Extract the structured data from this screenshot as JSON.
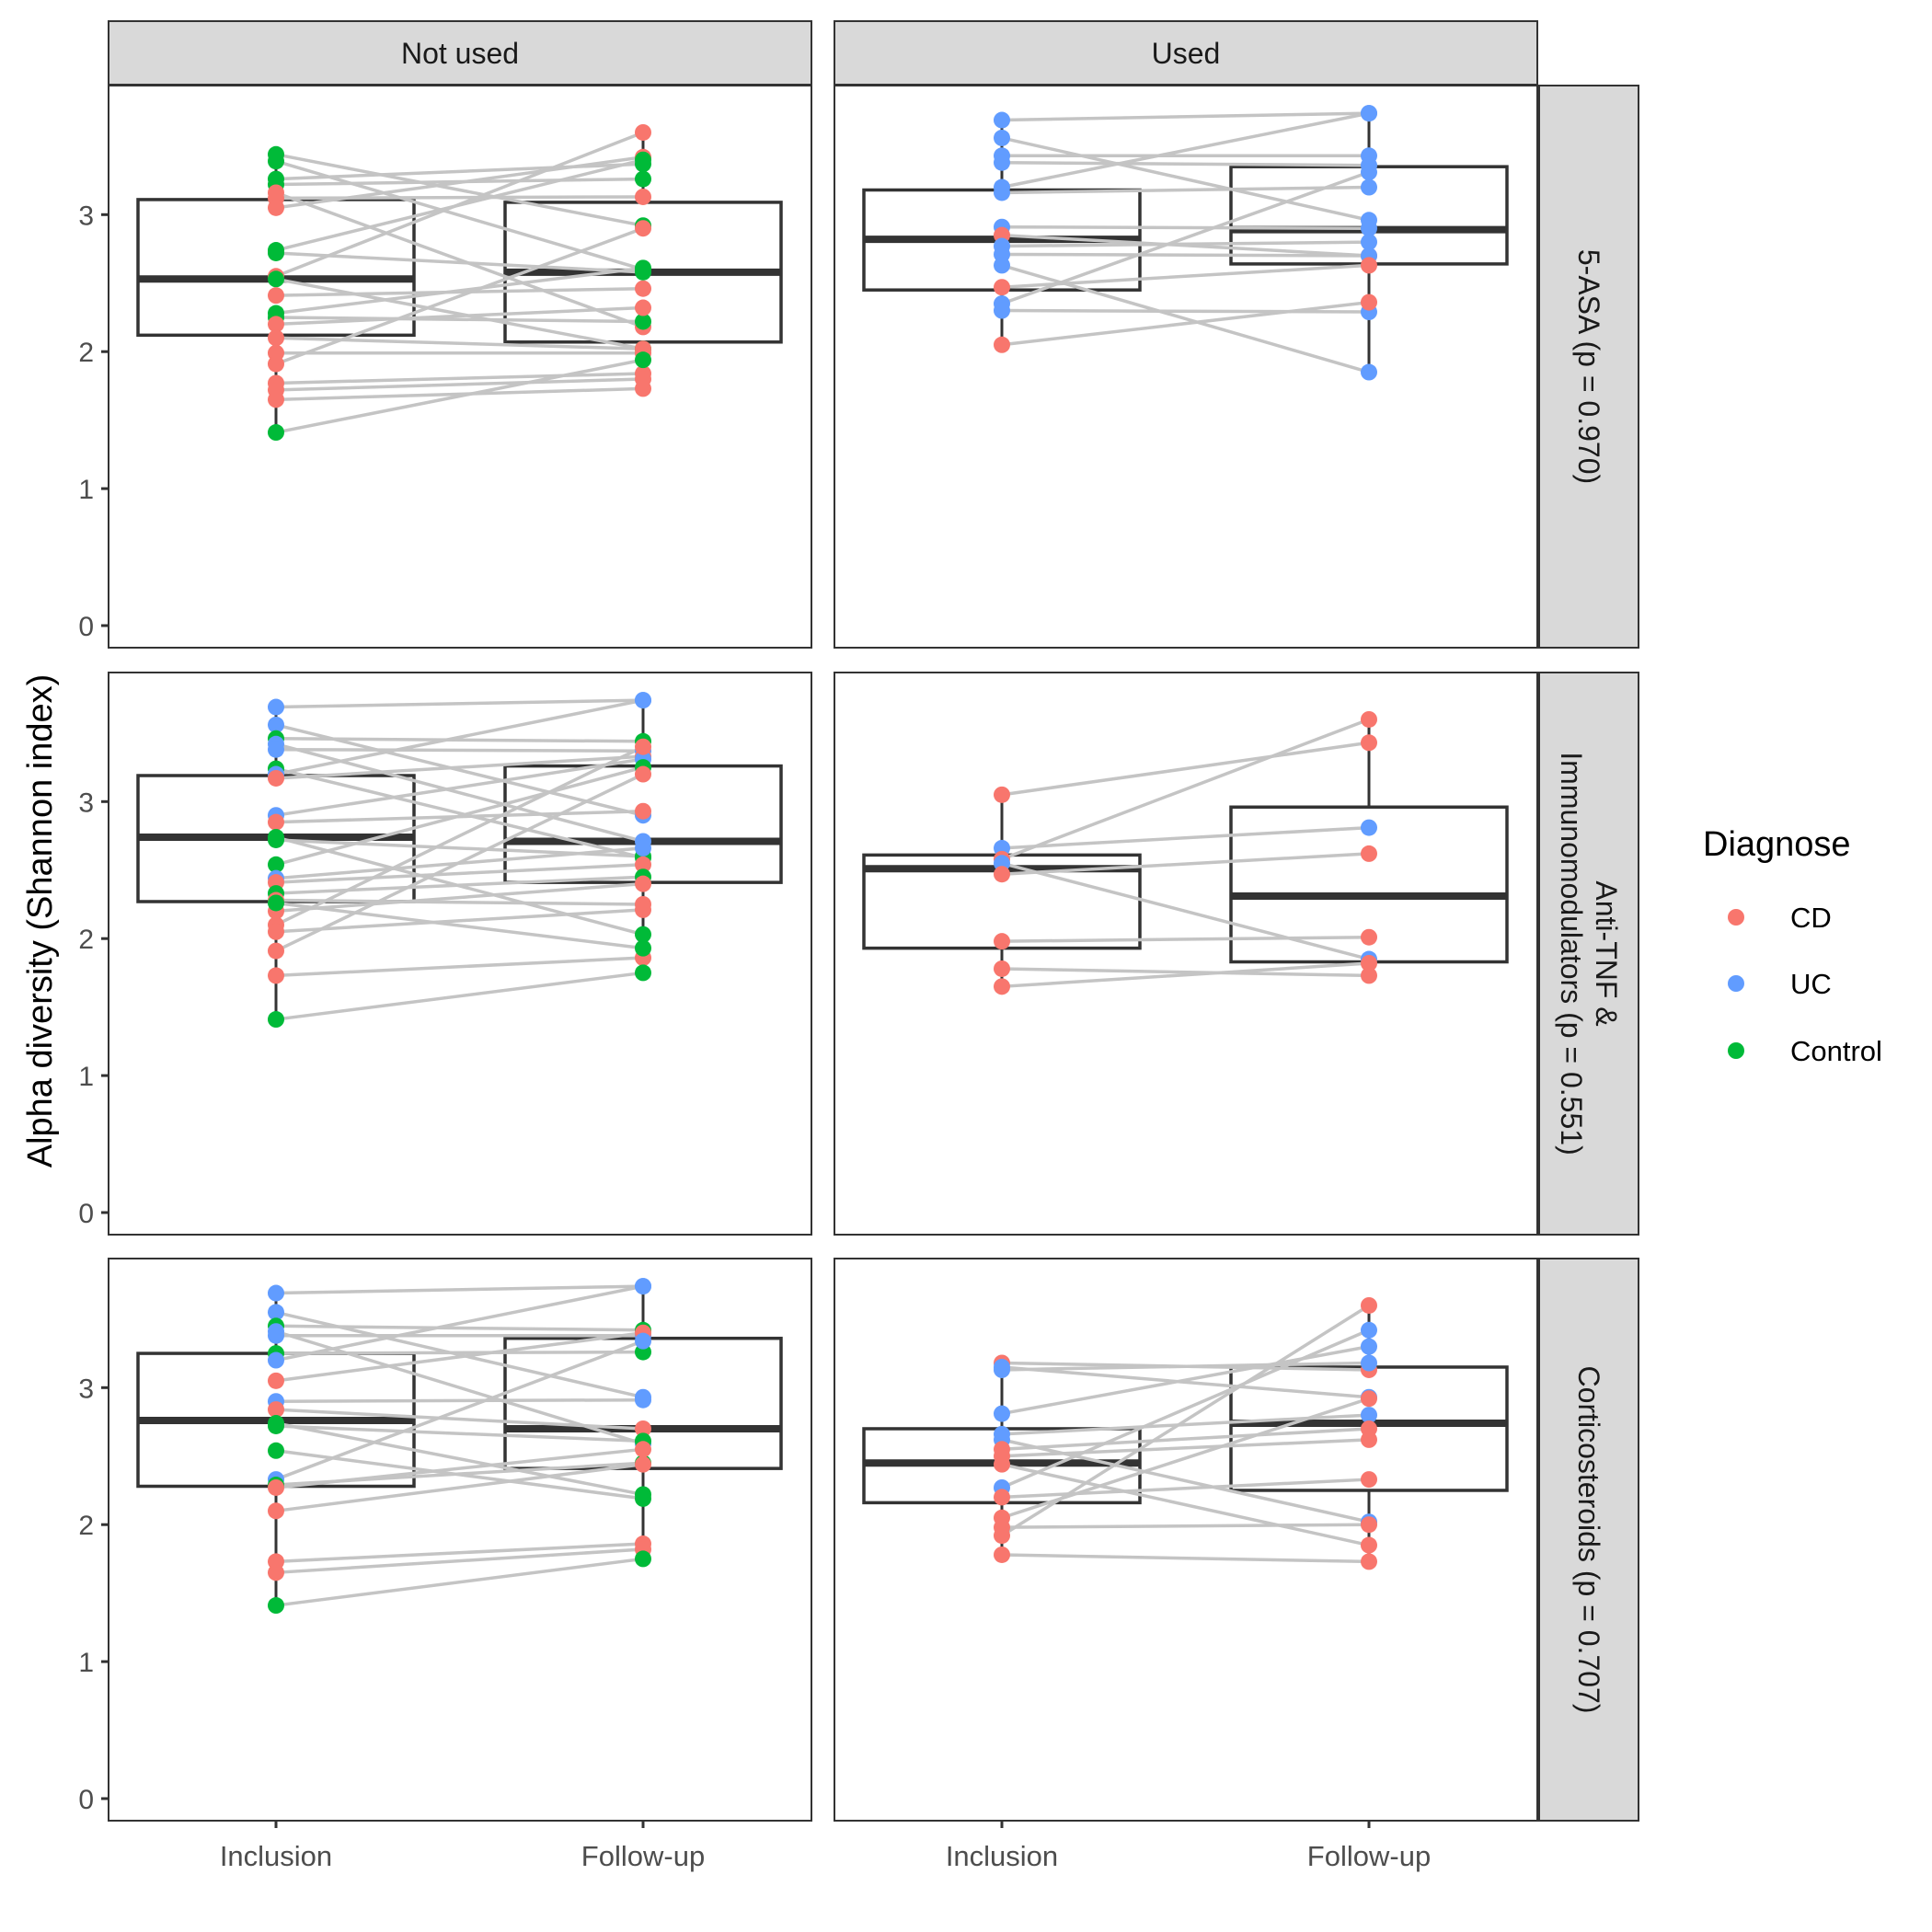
{
  "chart_data": {
    "type": "box+paired-scatter",
    "ylabel": "Alpha diversity (Shannon index)",
    "xlabel": "",
    "ylim": [
      0,
      3.95
    ],
    "y_ticks": [
      "0",
      "1",
      "2",
      "3"
    ],
    "x_categories": [
      "Inclusion",
      "Follow-up"
    ],
    "col_facets": [
      "Not used",
      "Used"
    ],
    "row_facets": [
      "5-ASA (p  = 0.970)",
      "Anti-TNF &\nImmunomodulators (p  = 0.551)",
      "Corticosteroids (p  = 0.707)"
    ],
    "row_facet_lines": [
      [
        "5-ASA (p  = 0.970)"
      ],
      [
        "Anti-TNF &",
        "Immunomodulators (p  = 0.551)"
      ],
      [
        "Corticosteroids (p  = 0.707)"
      ]
    ],
    "legend": {
      "title": "Diagnose",
      "position": "right",
      "entries": [
        {
          "label": "CD",
          "color": "#F8766D"
        },
        {
          "label": "UC",
          "color": "#619CFF"
        },
        {
          "label": "Control",
          "color": "#00BA38"
        }
      ]
    },
    "grid": false,
    "panels": [
      {
        "row": 0,
        "col": 0,
        "boxes": [
          {
            "x": "Inclusion",
            "q1": 2.12,
            "median": 2.53,
            "q3": 3.11,
            "whisker_low": 1.41,
            "whisker_high": 3.44
          },
          {
            "x": "Follow-up",
            "q1": 2.07,
            "median": 2.58,
            "q3": 3.09,
            "whisker_low": 1.73,
            "whisker_high": 3.6
          }
        ],
        "pairs": [
          {
            "g": "Control",
            "a": 3.44,
            "b": 2.92
          },
          {
            "g": "Control",
            "a": 3.39,
            "b": 2.6
          },
          {
            "g": "Control",
            "a": 3.26,
            "b": 3.37
          },
          {
            "g": "Control",
            "a": 3.22,
            "b": 3.26
          },
          {
            "g": "CD",
            "a": 3.16,
            "b": 2.18
          },
          {
            "g": "CD",
            "a": 3.12,
            "b": 3.13
          },
          {
            "g": "CD",
            "a": 3.05,
            "b": 3.42
          },
          {
            "g": "Control",
            "a": 2.74,
            "b": 3.4
          },
          {
            "g": "Control",
            "a": 2.72,
            "b": 2.58
          },
          {
            "g": "CD",
            "a": 2.55,
            "b": 3.6
          },
          {
            "g": "Control",
            "a": 2.53,
            "b": 2.02
          },
          {
            "g": "CD",
            "a": 2.41,
            "b": 2.46
          },
          {
            "g": "Control",
            "a": 2.28,
            "b": 2.61
          },
          {
            "g": "Control",
            "a": 2.25,
            "b": 2.22
          },
          {
            "g": "CD",
            "a": 2.2,
            "b": 2.32
          },
          {
            "g": "CD",
            "a": 2.1,
            "b": 2.02
          },
          {
            "g": "CD",
            "a": 1.99,
            "b": 1.99
          },
          {
            "g": "CD",
            "a": 1.91,
            "b": 2.9
          },
          {
            "g": "CD",
            "a": 1.77,
            "b": 1.84
          },
          {
            "g": "CD",
            "a": 1.72,
            "b": 1.8
          },
          {
            "g": "CD",
            "a": 1.65,
            "b": 1.73
          },
          {
            "g": "Control",
            "a": 1.41,
            "b": 1.94
          }
        ]
      },
      {
        "row": 0,
        "col": 1,
        "boxes": [
          {
            "x": "Inclusion",
            "q1": 2.45,
            "median": 2.82,
            "q3": 3.18,
            "whisker_low": 2.05,
            "whisker_high": 3.69
          },
          {
            "x": "Follow-up",
            "q1": 2.64,
            "median": 2.89,
            "q3": 3.35,
            "whisker_low": 1.85,
            "whisker_high": 3.74
          }
        ],
        "pairs": [
          {
            "g": "UC",
            "a": 3.69,
            "b": 3.74
          },
          {
            "g": "UC",
            "a": 3.56,
            "b": 2.96
          },
          {
            "g": "UC",
            "a": 3.43,
            "b": 3.43
          },
          {
            "g": "UC",
            "a": 3.38,
            "b": 3.36
          },
          {
            "g": "UC",
            "a": 3.2,
            "b": 3.74
          },
          {
            "g": "UC",
            "a": 3.16,
            "b": 3.2
          },
          {
            "g": "UC",
            "a": 2.91,
            "b": 2.9
          },
          {
            "g": "CD",
            "a": 2.85,
            "b": 2.7
          },
          {
            "g": "UC",
            "a": 2.77,
            "b": 2.8
          },
          {
            "g": "UC",
            "a": 2.71,
            "b": 2.7
          },
          {
            "g": "UC",
            "a": 2.63,
            "b": 1.85
          },
          {
            "g": "CD",
            "a": 2.47,
            "b": 2.63
          },
          {
            "g": "UC",
            "a": 2.35,
            "b": 3.31
          },
          {
            "g": "UC",
            "a": 2.3,
            "b": 2.29
          },
          {
            "g": "CD",
            "a": 2.05,
            "b": 2.36
          }
        ]
      },
      {
        "row": 1,
        "col": 0,
        "boxes": [
          {
            "x": "Inclusion",
            "q1": 2.27,
            "median": 2.74,
            "q3": 3.19,
            "whisker_low": 1.41,
            "whisker_high": 3.69
          },
          {
            "x": "Follow-up",
            "q1": 2.41,
            "median": 2.71,
            "q3": 3.26,
            "whisker_low": 1.75,
            "whisker_high": 3.74
          }
        ],
        "pairs": [
          {
            "g": "UC",
            "a": 3.69,
            "b": 3.74
          },
          {
            "g": "UC",
            "a": 3.56,
            "b": 2.9
          },
          {
            "g": "Control",
            "a": 3.46,
            "b": 3.44
          },
          {
            "g": "UC",
            "a": 3.42,
            "b": 2.71
          },
          {
            "g": "UC",
            "a": 3.38,
            "b": 3.37
          },
          {
            "g": "Control",
            "a": 3.24,
            "b": 2.59
          },
          {
            "g": "UC",
            "a": 3.2,
            "b": 3.74
          },
          {
            "g": "CD",
            "a": 3.17,
            "b": 3.33
          },
          {
            "g": "UC",
            "a": 2.9,
            "b": 3.31
          },
          {
            "g": "CD",
            "a": 2.85,
            "b": 2.93
          },
          {
            "g": "Control",
            "a": 2.74,
            "b": 2.03
          },
          {
            "g": "Control",
            "a": 2.72,
            "b": 2.6
          },
          {
            "g": "Control",
            "a": 2.54,
            "b": 3.25
          },
          {
            "g": "UC",
            "a": 2.44,
            "b": 2.66
          },
          {
            "g": "CD",
            "a": 2.41,
            "b": 2.54
          },
          {
            "g": "Control",
            "a": 2.33,
            "b": 2.45
          },
          {
            "g": "CD",
            "a": 2.28,
            "b": 2.25
          },
          {
            "g": "CD",
            "a": 2.2,
            "b": 2.4
          },
          {
            "g": "CD",
            "a": 2.1,
            "b": 3.4
          },
          {
            "g": "CD",
            "a": 2.05,
            "b": 2.21
          },
          {
            "g": "CD",
            "a": 1.91,
            "b": 3.2
          },
          {
            "g": "CD",
            "a": 1.73,
            "b": 1.86
          },
          {
            "g": "Control",
            "a": 1.41,
            "b": 1.75
          },
          {
            "g": "Control",
            "a": 2.26,
            "b": 1.93
          }
        ]
      },
      {
        "row": 1,
        "col": 1,
        "boxes": [
          {
            "x": "Inclusion",
            "q1": 1.93,
            "median": 2.51,
            "q3": 2.61,
            "whisker_low": 1.65,
            "whisker_high": 3.05
          },
          {
            "x": "Follow-up",
            "q1": 1.83,
            "median": 2.31,
            "q3": 2.96,
            "whisker_low": 1.73,
            "whisker_high": 3.6
          }
        ],
        "pairs": [
          {
            "g": "CD",
            "a": 3.05,
            "b": 3.43
          },
          {
            "g": "UC",
            "a": 2.66,
            "b": 2.81
          },
          {
            "g": "CD",
            "a": 2.58,
            "b": 3.6
          },
          {
            "g": "UC",
            "a": 2.55,
            "b": 1.85
          },
          {
            "g": "CD",
            "a": 2.47,
            "b": 2.62
          },
          {
            "g": "CD",
            "a": 1.98,
            "b": 2.01
          },
          {
            "g": "CD",
            "a": 1.78,
            "b": 1.73
          },
          {
            "g": "CD",
            "a": 1.65,
            "b": 1.82
          }
        ]
      },
      {
        "row": 2,
        "col": 0,
        "boxes": [
          {
            "x": "Inclusion",
            "q1": 2.28,
            "median": 2.76,
            "q3": 3.25,
            "whisker_low": 1.41,
            "whisker_high": 3.69
          },
          {
            "x": "Follow-up",
            "q1": 2.41,
            "median": 2.7,
            "q3": 3.36,
            "whisker_low": 1.75,
            "whisker_high": 3.74
          }
        ],
        "pairs": [
          {
            "g": "UC",
            "a": 3.69,
            "b": 3.74
          },
          {
            "g": "UC",
            "a": 3.55,
            "b": 2.93
          },
          {
            "g": "Control",
            "a": 3.45,
            "b": 3.42
          },
          {
            "g": "UC",
            "a": 3.41,
            "b": 2.59
          },
          {
            "g": "UC",
            "a": 3.38,
            "b": 3.38
          },
          {
            "g": "Control",
            "a": 3.25,
            "b": 3.26
          },
          {
            "g": "UC",
            "a": 3.2,
            "b": 3.74
          },
          {
            "g": "CD",
            "a": 3.05,
            "b": 3.4
          },
          {
            "g": "UC",
            "a": 2.9,
            "b": 2.91
          },
          {
            "g": "CD",
            "a": 2.84,
            "b": 2.7
          },
          {
            "g": "Control",
            "a": 2.74,
            "b": 2.22
          },
          {
            "g": "Control",
            "a": 2.72,
            "b": 2.61
          },
          {
            "g": "Control",
            "a": 2.54,
            "b": 2.19
          },
          {
            "g": "UC",
            "a": 2.33,
            "b": 3.34
          },
          {
            "g": "Control",
            "a": 2.29,
            "b": 2.45
          },
          {
            "g": "CD",
            "a": 2.27,
            "b": 2.55
          },
          {
            "g": "CD",
            "a": 2.1,
            "b": 2.44
          },
          {
            "g": "CD",
            "a": 1.73,
            "b": 1.86
          },
          {
            "g": "CD",
            "a": 1.65,
            "b": 1.82
          },
          {
            "g": "Control",
            "a": 1.41,
            "b": 1.75
          }
        ]
      },
      {
        "row": 2,
        "col": 1,
        "boxes": [
          {
            "x": "Inclusion",
            "q1": 2.16,
            "median": 2.45,
            "q3": 2.7,
            "whisker_low": 1.78,
            "whisker_high": 3.18
          },
          {
            "x": "Follow-up",
            "q1": 2.25,
            "median": 2.74,
            "q3": 3.15,
            "whisker_low": 1.73,
            "whisker_high": 3.6
          }
        ],
        "pairs": [
          {
            "g": "CD",
            "a": 3.18,
            "b": 3.13
          },
          {
            "g": "UC",
            "a": 3.15,
            "b": 2.93
          },
          {
            "g": "UC",
            "a": 3.13,
            "b": 3.18
          },
          {
            "g": "UC",
            "a": 2.81,
            "b": 3.3
          },
          {
            "g": "UC",
            "a": 2.66,
            "b": 2.8
          },
          {
            "g": "UC",
            "a": 2.62,
            "b": 2.02
          },
          {
            "g": "CD",
            "a": 2.55,
            "b": 2.7
          },
          {
            "g": "CD",
            "a": 2.5,
            "b": 2.62
          },
          {
            "g": "CD",
            "a": 2.44,
            "b": 1.85
          },
          {
            "g": "UC",
            "a": 2.27,
            "b": 3.42
          },
          {
            "g": "CD",
            "a": 2.2,
            "b": 2.33
          },
          {
            "g": "CD",
            "a": 2.05,
            "b": 2.92
          },
          {
            "g": "CD",
            "a": 1.98,
            "b": 2.0
          },
          {
            "g": "CD",
            "a": 1.92,
            "b": 3.6
          },
          {
            "g": "CD",
            "a": 1.78,
            "b": 1.73
          }
        ]
      }
    ]
  }
}
